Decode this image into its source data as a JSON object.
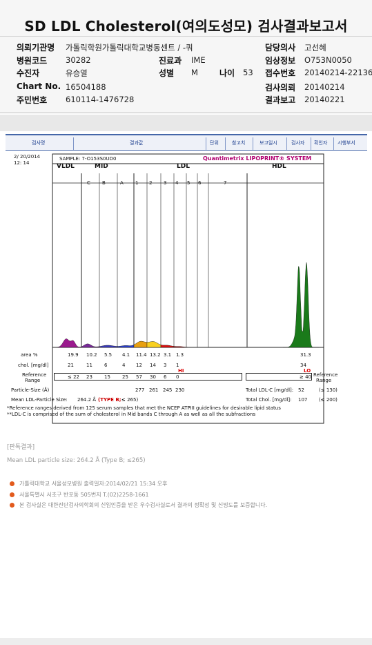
{
  "header": {
    "title": "SD LDL Cholesterol(여의도성모) 검사결과보고서",
    "fields": [
      {
        "label": "의뢰기관명",
        "value": "가톨릭학원가톨릭대학교병동센트 / -쿼"
      },
      {
        "label": "병원코드",
        "value": "30282"
      },
      {
        "label": "수진자",
        "value": "유승열"
      },
      {
        "label": "Chart No.",
        "value": "16504188"
      },
      {
        "label": "주민번호",
        "value": "610114-1476728"
      },
      {
        "label": "진료과",
        "value": "IME"
      },
      {
        "label": "성별",
        "value": "M"
      },
      {
        "label": "나이",
        "value": "53"
      },
      {
        "label": "담당의사",
        "value": "고선혜"
      },
      {
        "label": "임상정보",
        "value": "O753N0050"
      },
      {
        "label": "접수번호",
        "value": "20140214-22136"
      },
      {
        "label": "검사의뢰",
        "value": "20140214"
      },
      {
        "label": "결과보고",
        "value": "20140221"
      }
    ]
  },
  "table_header": {
    "columns": [
      "검사명",
      "결과값",
      "단위",
      "참고치",
      "보고일시",
      "검사자",
      "확인자",
      "시행부서"
    ]
  },
  "report": {
    "date": "2/ 20/2014",
    "time": "12: 14",
    "sample": "SAMPLE:   7-O153S0UD0",
    "logo": "Quantimetrix LIPOPRINT® SYSTEM",
    "band_groups": [
      "VLDL",
      "MID",
      "LDL",
      "HDL"
    ],
    "mid_bands": [
      "C",
      "B",
      "A"
    ],
    "ldl_bands": [
      "1",
      "2",
      "3",
      "4",
      "5",
      "6",
      "7"
    ],
    "rows": {
      "area_label": "area %",
      "area": [
        "19.9",
        "10.2",
        "5.5",
        "4.1",
        "11.4",
        "13.2",
        "3.1",
        "1.3",
        "",
        "",
        "",
        "31.3"
      ],
      "chol_label": "chol. [mg/dl]",
      "chol": [
        "21",
        "11",
        "6",
        "4",
        "12",
        "14",
        "3",
        "1",
        "",
        "",
        "",
        "34"
      ],
      "flag_hi": "HI",
      "flag_lo": "LO",
      "ref_label_1": "Reference",
      "ref_label_2": "Range",
      "ref": [
        "≤ 22",
        "23",
        "15",
        "25",
        "57",
        "30",
        "6",
        "0"
      ],
      "ref_hdl": "≥ 40",
      "particle_label": "Particle-Size (Å)",
      "particle": [
        "277",
        "261",
        "245",
        "230"
      ],
      "mean_label": "Mean LDL-Particle Size:",
      "mean_value": "264.2 Å",
      "mean_type": "(TYPE B;",
      "mean_limit": "≤ 265)",
      "total_ldl_label": "Total LDL-C [mg/dl]:",
      "total_ldl_value": "52",
      "total_ldl_ref": "(≤ 130)",
      "total_chol_label": "Total Chol. [mg/dl]:",
      "total_chol_value": "107",
      "total_chol_ref": "(≤ 200)"
    },
    "footnote_1": "*Reference ranges derived from 125 serum samples that met the NCEP ATPIII guidelines for desirable lipid status",
    "footnote_2": "**LDL-C is comprised of the sum of cholesterol in Mid bands C through A as well as all the subfractions"
  },
  "chart_data": {
    "type": "area",
    "title": "Quantimetrix LIPOPRINT® SYSTEM",
    "categories": [
      "VLDL",
      "MID C",
      "MID B",
      "MID A",
      "LDL 1",
      "LDL 2",
      "LDL 3",
      "LDL 4",
      "LDL 5",
      "LDL 6",
      "LDL 7",
      "HDL"
    ],
    "series": [
      {
        "name": "area %",
        "values": [
          19.9,
          10.2,
          5.5,
          4.1,
          11.4,
          13.2,
          3.1,
          1.3,
          0,
          0,
          0,
          31.3
        ]
      },
      {
        "name": "chol. [mg/dl]",
        "values": [
          21,
          11,
          6,
          4,
          12,
          14,
          3,
          1,
          0,
          0,
          0,
          34
        ]
      }
    ],
    "colors": {
      "vldl": "#9b1a8e",
      "mid_c": "#7a2a9a",
      "mid_b": "#3a3ac0",
      "mid_a": "#2a40d0",
      "ldl_1": "#e8a010",
      "ldl_2": "#f8d020",
      "ldl_3": "#e01010",
      "ldl_4": "#c01010",
      "hdl": "#1a7a1a"
    }
  },
  "judgement": {
    "title": "[판독결과]",
    "text": "Mean LDL particle size: 264.2 Å  (Type B; ≤265)"
  },
  "notes": [
    {
      "text": "가톨릭대학교 서울성모병원        출력일자:2014/02/21 15:34 오후"
    },
    {
      "text": "서울특별시 서초구 반포동 505번지 T.(02)2258-1661"
    },
    {
      "text": "본 검사실은 대한진단검사의학회의 신임인증을 받은 우수검사실로서 결과의 정확성 및 신빙도를 보증합니다."
    }
  ]
}
